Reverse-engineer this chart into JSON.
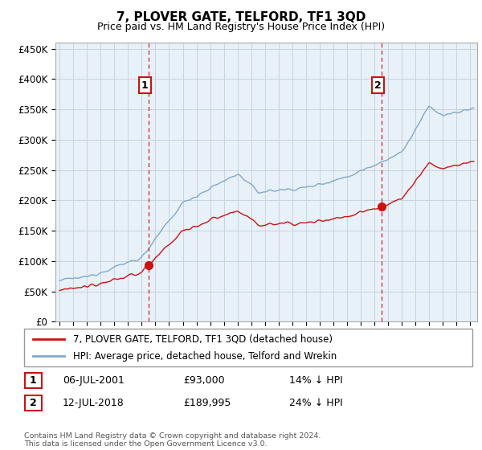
{
  "title": "7, PLOVER GATE, TELFORD, TF1 3QD",
  "subtitle": "Price paid vs. HM Land Registry's House Price Index (HPI)",
  "ylabel_ticks": [
    "£0",
    "£50K",
    "£100K",
    "£150K",
    "£200K",
    "£250K",
    "£300K",
    "£350K",
    "£400K",
    "£450K"
  ],
  "ytick_values": [
    0,
    50000,
    100000,
    150000,
    200000,
    250000,
    300000,
    350000,
    400000,
    450000
  ],
  "ylim": [
    0,
    460000
  ],
  "xlim_start": 1994.7,
  "xlim_end": 2025.5,
  "sale1_x": 2001.52,
  "sale1_y": 93000,
  "sale1_label": "1",
  "sale1_date": "06-JUL-2001",
  "sale1_price": "£93,000",
  "sale1_hpi": "14% ↓ HPI",
  "sale2_x": 2018.54,
  "sale2_y": 189995,
  "sale2_label": "2",
  "sale2_date": "12-JUL-2018",
  "sale2_price": "£189,995",
  "sale2_hpi": "24% ↓ HPI",
  "hpi_color": "#7faacc",
  "sale_color": "#cc1111",
  "vline_color": "#cc2222",
  "legend_line1": "7, PLOVER GATE, TELFORD, TF1 3QD (detached house)",
  "legend_line2": "HPI: Average price, detached house, Telford and Wrekin",
  "footer": "Contains HM Land Registry data © Crown copyright and database right 2024.\nThis data is licensed under the Open Government Licence v3.0.",
  "background_color": "#ffffff",
  "plot_bg_color": "#e8f0f8",
  "grid_color": "#c8d4e0"
}
